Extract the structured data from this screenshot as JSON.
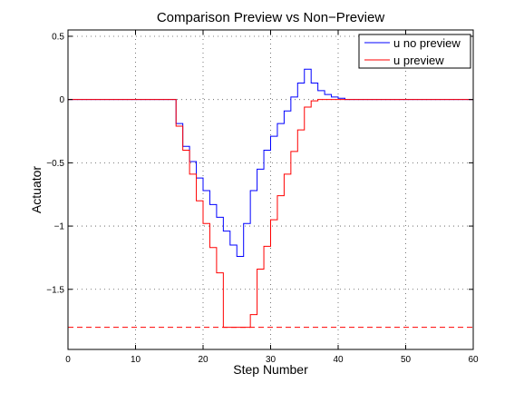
{
  "chart_data": {
    "type": "line",
    "title": "Comparison Preview vs Non−Preview",
    "xlabel": "Step Number",
    "ylabel": "Actuator",
    "xlim": [
      0,
      60
    ],
    "ylim": [
      -1.975,
      0.55
    ],
    "xticks": [
      0,
      10,
      20,
      30,
      40,
      50,
      60
    ],
    "yticks": [
      -1.5,
      -1,
      -0.5,
      0,
      0.5
    ],
    "xtick_labels": [
      "0",
      "10",
      "20",
      "30",
      "40",
      "50",
      "60"
    ],
    "ytick_labels": [
      "−1.5",
      "−1",
      "−0.5",
      "0",
      "0.5"
    ],
    "grid": true,
    "legend_position": "top-right",
    "series": [
      {
        "name": "u no preview",
        "color": "#0000ff",
        "style": "stairs",
        "x": [
          0,
          1,
          2,
          3,
          4,
          5,
          6,
          7,
          8,
          9,
          10,
          11,
          12,
          13,
          14,
          15,
          16,
          17,
          18,
          19,
          20,
          21,
          22,
          23,
          24,
          25,
          26,
          27,
          28,
          29,
          30,
          31,
          32,
          33,
          34,
          35,
          36,
          37,
          38,
          39,
          40,
          41,
          42,
          43,
          44,
          45,
          46,
          47,
          48,
          49,
          50,
          51,
          52,
          53,
          54,
          55,
          56,
          57,
          58,
          59,
          60
        ],
        "y": [
          0,
          0,
          0,
          0,
          0,
          0,
          0,
          0,
          0,
          0,
          0,
          0,
          0,
          0,
          0,
          0,
          -0.19,
          -0.37,
          -0.49,
          -0.62,
          -0.72,
          -0.83,
          -0.93,
          -1.04,
          -1.15,
          -1.24,
          -0.98,
          -0.72,
          -0.55,
          -0.4,
          -0.29,
          -0.19,
          -0.09,
          0.02,
          0.13,
          0.24,
          0.13,
          0.07,
          0.04,
          0.02,
          0.01,
          0,
          0,
          0,
          0,
          0,
          0,
          0,
          0,
          0,
          0,
          0,
          0,
          0,
          0,
          0,
          0,
          0,
          0,
          0,
          0
        ]
      },
      {
        "name": "u preview",
        "color": "#ff0000",
        "style": "stairs",
        "x": [
          0,
          1,
          2,
          3,
          4,
          5,
          6,
          7,
          8,
          9,
          10,
          11,
          12,
          13,
          14,
          15,
          16,
          17,
          18,
          19,
          20,
          21,
          22,
          23,
          24,
          25,
          26,
          27,
          28,
          29,
          30,
          31,
          32,
          33,
          34,
          35,
          36,
          37,
          38,
          39,
          40,
          41,
          42,
          43,
          44,
          45,
          46,
          47,
          48,
          49,
          50,
          51,
          52,
          53,
          54,
          55,
          56,
          57,
          58,
          59,
          60
        ],
        "y": [
          0,
          0,
          0,
          0,
          0,
          0,
          0,
          0,
          0,
          0,
          0,
          0,
          0,
          0,
          0,
          0,
          -0.21,
          -0.4,
          -0.59,
          -0.8,
          -0.98,
          -1.17,
          -1.37,
          -1.8,
          -1.8,
          -1.8,
          -1.8,
          -1.7,
          -1.34,
          -1.16,
          -0.95,
          -0.76,
          -0.59,
          -0.41,
          -0.24,
          -0.06,
          -0.01,
          0,
          0,
          0,
          0,
          0,
          0,
          0,
          0,
          0,
          0,
          0,
          0,
          0,
          0,
          0,
          0,
          0,
          0,
          0,
          0,
          0,
          0,
          0,
          0
        ]
      },
      {
        "name": "",
        "color": "#ff0000",
        "style": "dashed",
        "x": [
          0,
          60
        ],
        "y": [
          -1.8,
          -1.8
        ]
      }
    ]
  }
}
